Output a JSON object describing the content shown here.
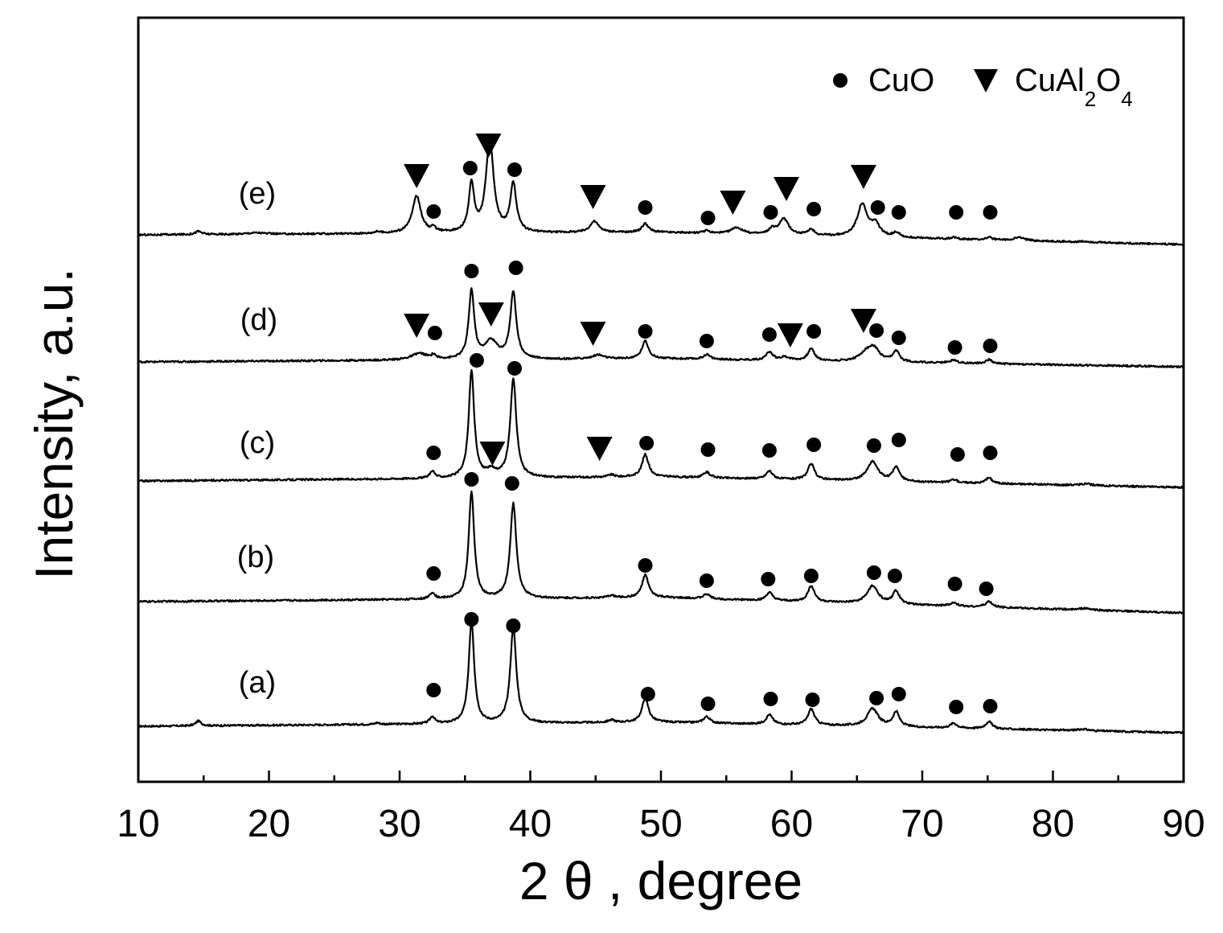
{
  "chart_data": {
    "type": "line",
    "xlabel": "2 θ , degree",
    "ylabel": "Intensity, a.u.",
    "xlim": [
      10,
      90
    ],
    "xticks": [
      10,
      20,
      30,
      40,
      50,
      60,
      70,
      80,
      90
    ],
    "grid": false,
    "legend": {
      "position": "top-right",
      "entries": [
        {
          "symbol": "circle",
          "label": "CuO"
        },
        {
          "symbol": "triangle-down",
          "label_main": "CuAl",
          "sub1": "2",
          "label_mid": "O",
          "sub2": "4"
        }
      ]
    },
    "series": [
      {
        "name": "(a)",
        "baseline": [
          [
            10,
            0
          ],
          [
            50,
            5
          ],
          [
            90,
            -8
          ]
        ],
        "peaks": [
          [
            14.6,
            6,
            0.25
          ],
          [
            28.3,
            2,
            0.2
          ],
          [
            32.5,
            9,
            0.22
          ],
          [
            35.5,
            128,
            0.25
          ],
          [
            38.7,
            118,
            0.28
          ],
          [
            46.2,
            3,
            0.3
          ],
          [
            48.8,
            30,
            0.3
          ],
          [
            53.5,
            8,
            0.3
          ],
          [
            58.3,
            12,
            0.3
          ],
          [
            61.5,
            20,
            0.3
          ],
          [
            66.2,
            22,
            0.5
          ],
          [
            68.0,
            18,
            0.3
          ],
          [
            72.4,
            6,
            0.3
          ],
          [
            75.1,
            9,
            0.3
          ],
          [
            82.3,
            2,
            0.5
          ]
        ],
        "markers": [
          {
            "shape": "circle",
            "x": 32.6,
            "y": 45
          },
          {
            "shape": "circle",
            "x": 35.5,
            "y": 133
          },
          {
            "shape": "circle",
            "x": 38.7,
            "y": 125
          },
          {
            "shape": "circle",
            "x": 49.0,
            "y": 40
          },
          {
            "shape": "circle",
            "x": 53.6,
            "y": 28
          },
          {
            "shape": "circle",
            "x": 58.4,
            "y": 34
          },
          {
            "shape": "circle",
            "x": 61.6,
            "y": 33
          },
          {
            "shape": "circle",
            "x": 66.5,
            "y": 35
          },
          {
            "shape": "circle",
            "x": 68.2,
            "y": 40
          },
          {
            "shape": "circle",
            "x": 72.6,
            "y": 24
          },
          {
            "shape": "circle",
            "x": 75.2,
            "y": 25
          }
        ]
      },
      {
        "name": "(b)",
        "baseline": [
          [
            10,
            0
          ],
          [
            50,
            5
          ],
          [
            90,
            -14
          ]
        ],
        "peaks": [
          [
            32.5,
            8,
            0.22
          ],
          [
            35.5,
            133,
            0.25
          ],
          [
            38.7,
            118,
            0.28
          ],
          [
            46.2,
            3,
            0.3
          ],
          [
            48.8,
            28,
            0.3
          ],
          [
            53.5,
            6,
            0.3
          ],
          [
            58.3,
            10,
            0.3
          ],
          [
            61.5,
            20,
            0.3
          ],
          [
            66.2,
            22,
            0.5
          ],
          [
            68.0,
            16,
            0.3
          ],
          [
            72.4,
            4,
            0.3
          ],
          [
            75.1,
            7,
            0.3
          ],
          [
            82.5,
            2,
            0.5
          ]
        ],
        "markers": [
          {
            "shape": "circle",
            "x": 32.6,
            "y": 35
          },
          {
            "shape": "circle",
            "x": 35.5,
            "y": 152
          },
          {
            "shape": "circle",
            "x": 38.6,
            "y": 147
          },
          {
            "shape": "circle",
            "x": 48.8,
            "y": 45
          },
          {
            "shape": "circle",
            "x": 53.5,
            "y": 26
          },
          {
            "shape": "circle",
            "x": 58.2,
            "y": 28
          },
          {
            "shape": "circle",
            "x": 61.5,
            "y": 32
          },
          {
            "shape": "circle",
            "x": 66.3,
            "y": 36
          },
          {
            "shape": "circle",
            "x": 67.9,
            "y": 32
          },
          {
            "shape": "circle",
            "x": 72.5,
            "y": 22
          },
          {
            "shape": "circle",
            "x": 74.9,
            "y": 16
          }
        ]
      },
      {
        "name": "(c)",
        "baseline": [
          [
            10,
            0
          ],
          [
            50,
            5
          ],
          [
            90,
            -8
          ]
        ],
        "peaks": [
          [
            32.5,
            9,
            0.22
          ],
          [
            35.5,
            133,
            0.25
          ],
          [
            37.0,
            8,
            0.5
          ],
          [
            38.7,
            122,
            0.28
          ],
          [
            46.2,
            3,
            0.3
          ],
          [
            48.8,
            28,
            0.3
          ],
          [
            53.5,
            7,
            0.3
          ],
          [
            58.3,
            10,
            0.3
          ],
          [
            61.5,
            20,
            0.3
          ],
          [
            66.2,
            24,
            0.5
          ],
          [
            68.0,
            18,
            0.3
          ],
          [
            72.4,
            4,
            0.3
          ],
          [
            75.1,
            7,
            0.3
          ],
          [
            82.5,
            2,
            0.5
          ]
        ],
        "markers": [
          {
            "shape": "circle",
            "x": 32.6,
            "y": 35
          },
          {
            "shape": "circle",
            "x": 35.9,
            "y": 150
          },
          {
            "shape": "triangle",
            "x": 37.1,
            "y": 34
          },
          {
            "shape": "circle",
            "x": 38.8,
            "y": 140
          },
          {
            "shape": "triangle",
            "x": 45.3,
            "y": 40
          },
          {
            "shape": "circle",
            "x": 48.9,
            "y": 47
          },
          {
            "shape": "circle",
            "x": 53.6,
            "y": 39
          },
          {
            "shape": "circle",
            "x": 58.3,
            "y": 38
          },
          {
            "shape": "circle",
            "x": 61.7,
            "y": 45
          },
          {
            "shape": "circle",
            "x": 66.3,
            "y": 44
          },
          {
            "shape": "circle",
            "x": 68.2,
            "y": 51
          },
          {
            "shape": "circle",
            "x": 72.7,
            "y": 33
          },
          {
            "shape": "circle",
            "x": 75.2,
            "y": 35
          }
        ]
      },
      {
        "name": "(d)",
        "baseline": [
          [
            10,
            0
          ],
          [
            50,
            4
          ],
          [
            90,
            -6
          ]
        ],
        "peaks": [
          [
            31.5,
            8,
            0.7
          ],
          [
            32.6,
            5,
            0.2
          ],
          [
            35.5,
            85,
            0.25
          ],
          [
            37.0,
            22,
            0.6
          ],
          [
            38.7,
            82,
            0.28
          ],
          [
            45.2,
            5,
            0.5
          ],
          [
            48.8,
            22,
            0.3
          ],
          [
            53.5,
            6,
            0.3
          ],
          [
            58.3,
            10,
            0.3
          ],
          [
            59.5,
            4,
            0.5
          ],
          [
            61.5,
            15,
            0.3
          ],
          [
            65.7,
            10,
            0.6
          ],
          [
            66.3,
            15,
            0.5
          ],
          [
            68.0,
            13,
            0.3
          ],
          [
            72.4,
            4,
            0.3
          ],
          [
            75.1,
            5,
            0.3
          ]
        ],
        "markers": [
          {
            "shape": "triangle",
            "x": 31.3,
            "y": 45
          },
          {
            "shape": "circle",
            "x": 32.7,
            "y": 36
          },
          {
            "shape": "circle",
            "x": 35.5,
            "y": 113
          },
          {
            "shape": "triangle",
            "x": 37.0,
            "y": 59
          },
          {
            "shape": "circle",
            "x": 38.9,
            "y": 117
          },
          {
            "shape": "triangle",
            "x": 44.8,
            "y": 35
          },
          {
            "shape": "circle",
            "x": 48.8,
            "y": 38
          },
          {
            "shape": "circle",
            "x": 53.5,
            "y": 26
          },
          {
            "shape": "circle",
            "x": 58.3,
            "y": 34
          },
          {
            "shape": "triangle",
            "x": 59.9,
            "y": 33
          },
          {
            "shape": "circle",
            "x": 61.7,
            "y": 38
          },
          {
            "shape": "triangle",
            "x": 65.5,
            "y": 51
          },
          {
            "shape": "circle",
            "x": 66.5,
            "y": 39
          },
          {
            "shape": "circle",
            "x": 68.2,
            "y": 30
          },
          {
            "shape": "circle",
            "x": 72.5,
            "y": 18
          },
          {
            "shape": "circle",
            "x": 75.2,
            "y": 20
          }
        ]
      },
      {
        "name": "(e)",
        "baseline": [
          [
            10,
            0
          ],
          [
            50,
            3
          ],
          [
            90,
            -12
          ]
        ],
        "peaks": [
          [
            14.6,
            4,
            0.3
          ],
          [
            19.0,
            2,
            0.8
          ],
          [
            28.3,
            2,
            0.3
          ],
          [
            31.3,
            46,
            0.4
          ],
          [
            32.6,
            5,
            0.2
          ],
          [
            35.5,
            59,
            0.25
          ],
          [
            36.9,
            115,
            0.35
          ],
          [
            38.7,
            60,
            0.28
          ],
          [
            44.9,
            14,
            0.4
          ],
          [
            48.8,
            11,
            0.3
          ],
          [
            53.5,
            3,
            0.3
          ],
          [
            55.8,
            8,
            0.5
          ],
          [
            58.5,
            6,
            0.3
          ],
          [
            59.4,
            20,
            0.45
          ],
          [
            61.5,
            7,
            0.3
          ],
          [
            65.4,
            40,
            0.45
          ],
          [
            66.4,
            15,
            0.4
          ],
          [
            68.0,
            6,
            0.3
          ],
          [
            72.4,
            2,
            0.3
          ],
          [
            75.1,
            3,
            0.3
          ],
          [
            77.4,
            4,
            0.5
          ],
          [
            82.5,
            1,
            0.5
          ]
        ],
        "markers": [
          {
            "shape": "triangle",
            "x": 31.3,
            "y": 73
          },
          {
            "shape": "circle",
            "x": 32.6,
            "y": 29
          },
          {
            "shape": "circle",
            "x": 35.4,
            "y": 83
          },
          {
            "shape": "triangle",
            "x": 36.8,
            "y": 111
          },
          {
            "shape": "circle",
            "x": 38.8,
            "y": 81
          },
          {
            "shape": "triangle",
            "x": 44.8,
            "y": 47
          },
          {
            "shape": "circle",
            "x": 48.8,
            "y": 34
          },
          {
            "shape": "circle",
            "x": 53.6,
            "y": 21
          },
          {
            "shape": "triangle",
            "x": 55.5,
            "y": 40
          },
          {
            "shape": "circle",
            "x": 58.4,
            "y": 28
          },
          {
            "shape": "triangle",
            "x": 59.6,
            "y": 57
          },
          {
            "shape": "circle",
            "x": 61.7,
            "y": 32
          },
          {
            "shape": "triangle",
            "x": 65.5,
            "y": 72
          },
          {
            "shape": "circle",
            "x": 66.6,
            "y": 34
          },
          {
            "shape": "circle",
            "x": 68.2,
            "y": 28
          },
          {
            "shape": "circle",
            "x": 72.6,
            "y": 28
          },
          {
            "shape": "circle",
            "x": 75.2,
            "y": 28
          }
        ]
      }
    ]
  }
}
